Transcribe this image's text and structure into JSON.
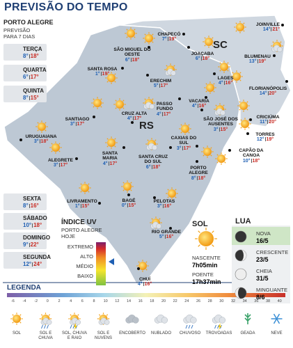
{
  "header": {
    "title": "PREVISÃO DO TEMPO"
  },
  "forecast": {
    "city": "PORTO ALEGRE",
    "subtitle": [
      "PREVISÃO",
      "PARA 7 DIAS"
    ],
    "days": [
      {
        "day": "TERÇA",
        "min": "8°",
        "max": "18°"
      },
      {
        "day": "QUARTA",
        "min": "6°",
        "max": "17°"
      },
      {
        "day": "QUINTA",
        "min": "8°",
        "max": "15°"
      },
      {
        "day": "SEXTA",
        "min": "8°",
        "max": "16°"
      },
      {
        "day": "SÁBADO",
        "min": "10°",
        "max": "18°"
      },
      {
        "day": "DOMINGO",
        "min": "9°",
        "max": "22°"
      },
      {
        "day": "SEGUNDA",
        "min": "12°",
        "max": "24°"
      }
    ]
  },
  "map": {
    "states": [
      "SC",
      "RS"
    ],
    "cities": [
      {
        "name": "JOINVILLE",
        "min": "14°",
        "max": "21°"
      },
      {
        "name": "CHAPECÓ",
        "min": "7°",
        "max": "19°"
      },
      {
        "name": "SÃO MIGUEL DO OESTE",
        "min": "6°",
        "max": "18°"
      },
      {
        "name": "JOAÇABA",
        "min": "6°",
        "max": "18°"
      },
      {
        "name": "BLUMENAU",
        "min": "13°",
        "max": "19°"
      },
      {
        "name": "SANTA ROSA",
        "min": "1°",
        "max": "19°"
      },
      {
        "name": "ERECHIM",
        "min": "5°",
        "max": "17°"
      },
      {
        "name": "LAGES",
        "min": "4°",
        "max": "16°"
      },
      {
        "name": "FLORIANÓPOLIS",
        "min": "14°",
        "max": "20°"
      },
      {
        "name": "PASSO FUNDO",
        "min": "4°",
        "max": "17°"
      },
      {
        "name": "VACARIA",
        "min": "4°",
        "max": "16°"
      },
      {
        "name": "CRUZ ALTA",
        "min": "4°",
        "max": "17°"
      },
      {
        "name": "SANTIAGO",
        "min": "3°",
        "max": "17°"
      },
      {
        "name": "SÃO JOSÉ DOS AUSENTES",
        "min": "3°",
        "max": "15°"
      },
      {
        "name": "CRICIÚMA",
        "min": "11°",
        "max": "20°"
      },
      {
        "name": "URUGUAIANA",
        "min": "3°",
        "max": "18°"
      },
      {
        "name": "TORRES",
        "min": "12°",
        "max": "19°"
      },
      {
        "name": "CAXIAS DO SUL",
        "min": "3°",
        "max": "17°"
      },
      {
        "name": "SANTA MARIA",
        "min": "4°",
        "max": "17°"
      },
      {
        "name": "SANTA CRUZ DO SUL",
        "min": "6°",
        "max": "18°"
      },
      {
        "name": "ALEGRETE",
        "min": "3°",
        "max": "17°"
      },
      {
        "name": "CAPÃO DA CANOA",
        "min": "10°",
        "max": "18°"
      },
      {
        "name": "PORTO ALEGRE",
        "min": "8°",
        "max": "18°"
      },
      {
        "name": "LIVRAMENTO",
        "min": "1°",
        "max": "15°"
      },
      {
        "name": "BAGÉ",
        "min": "0°",
        "max": "15°"
      },
      {
        "name": "PELOTAS",
        "min": "3°",
        "max": "16°"
      },
      {
        "name": "RIO GRANDE",
        "min": "5°",
        "max": "16°"
      },
      {
        "name": "CHUÍ",
        "min": "4°",
        "max": "16°"
      }
    ]
  },
  "uv": {
    "title": "ÍNDICE UV",
    "place": "PORTO ALEGRE",
    "when": "HOJE",
    "levels": [
      "EXTREMO",
      "ALTO",
      "MÉDIO",
      "BAIXO"
    ]
  },
  "sun": {
    "title": "SOL",
    "rise_label": "NASCENTE",
    "rise": "7h05min",
    "set_label": "POENTE",
    "set": "17h37min"
  },
  "moon": {
    "title": "LUA",
    "phases": [
      {
        "name": "NOVA",
        "date": "16/5"
      },
      {
        "name": "CRESCENTE",
        "date": "23/5"
      },
      {
        "name": "CHEIA",
        "date": "31/5"
      },
      {
        "name": "MINGUANTE",
        "date": "8/6"
      }
    ]
  },
  "legend": {
    "title": "LEGENDA",
    "scale": [
      -6,
      -4,
      -2,
      0,
      2,
      4,
      6,
      8,
      10,
      12,
      14,
      16,
      18,
      20,
      22,
      24,
      26,
      28,
      30,
      32,
      34,
      36,
      38,
      40
    ],
    "icons": [
      "SOL",
      "SOL E CHUVA",
      "SOL, CHUVA E RAIO",
      "SOL E NUVENS",
      "ENCOBERTO",
      "NUBLADO",
      "CHUVOSO",
      "TROVOADAS",
      "GEADA",
      "NEVE"
    ]
  }
}
